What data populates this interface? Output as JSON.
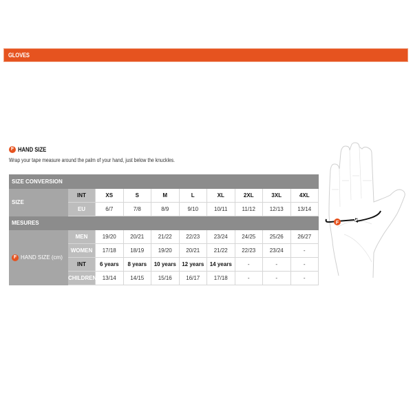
{
  "banner": {
    "title": "GLOVES"
  },
  "section": {
    "badge": "F",
    "title": "HAND SIZE",
    "instructions": "Wrap your tape measure around the palm of your hand, just below the knuckles."
  },
  "table": {
    "size_conversion_label": "SIZE CONVERSION",
    "size_label": "SIZE",
    "int_label": "INT",
    "eu_label": "EU",
    "int_sizes": [
      "XS",
      "S",
      "M",
      "L",
      "XL",
      "2XL",
      "3XL",
      "4XL"
    ],
    "eu_sizes": [
      "6/7",
      "7/8",
      "8/9",
      "9/10",
      "10/11",
      "11/12",
      "12/13",
      "13/14"
    ],
    "mesures_label": "MESURES",
    "hand_size_badge": "F",
    "hand_size_label": "HAND SIZE (cm)",
    "men_label": "MEN",
    "men": [
      "19/20",
      "20/21",
      "21/22",
      "22/23",
      "23/24",
      "24/25",
      "25/26",
      "26/27"
    ],
    "women_label": "WOMEN",
    "women": [
      "17/18",
      "18/19",
      "19/20",
      "20/21",
      "21/22",
      "22/23",
      "23/24",
      "-"
    ],
    "children_int_label": "INT",
    "children_int": [
      "6 years",
      "8 years",
      "10 years",
      "12 years",
      "14 years",
      "-",
      "-",
      "-"
    ],
    "children_label": "CHILDREN",
    "children": [
      "13/14",
      "14/15",
      "15/16",
      "16/17",
      "17/18",
      "-",
      "-",
      "-"
    ]
  },
  "illustration": {
    "badge": "F"
  },
  "colors": {
    "accent": "#e6531f",
    "header_gray": "#8c8c8c"
  }
}
